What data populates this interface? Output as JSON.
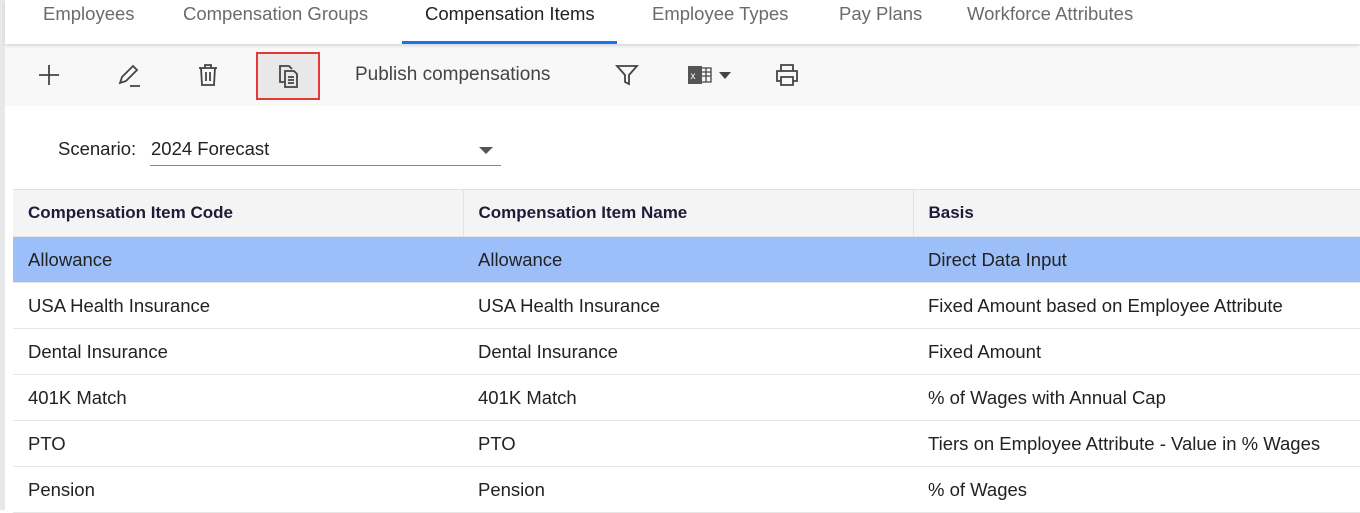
{
  "tabs": [
    {
      "label": "Employees",
      "active": false
    },
    {
      "label": "Compensation Groups",
      "active": false
    },
    {
      "label": "Compensation Items",
      "active": true
    },
    {
      "label": "Employee Types",
      "active": false
    },
    {
      "label": "Pay Plans",
      "active": false
    },
    {
      "label": "Workforce Attributes",
      "active": false
    }
  ],
  "toolbar": {
    "icons": [
      "plus-icon",
      "pencil-icon",
      "trash-icon",
      "copy-document-icon",
      "filter-icon",
      "excel-icon",
      "printer-icon"
    ],
    "publish_label": "Publish compensations",
    "highlight_color": "#e53935"
  },
  "scenario": {
    "label": "Scenario:",
    "value": "2024 Forecast"
  },
  "table": {
    "columns": [
      "Compensation Item Code",
      "Compensation Item Name",
      "Basis"
    ],
    "rows": [
      [
        "Allowance",
        "Allowance",
        "Direct Data Input"
      ],
      [
        "USA Health Insurance",
        "USA Health Insurance",
        "Fixed Amount based on Employee Attribute"
      ],
      [
        "Dental Insurance",
        "Dental Insurance",
        "Fixed Amount"
      ],
      [
        "401K Match",
        "401K Match",
        "% of Wages with Annual Cap"
      ],
      [
        "PTO",
        "PTO",
        "Tiers on Employee Attribute - Value in % Wages"
      ],
      [
        "Pension",
        "Pension",
        "% of Wages"
      ]
    ],
    "selected_row": 0,
    "selected_color": "#9dbff9"
  }
}
